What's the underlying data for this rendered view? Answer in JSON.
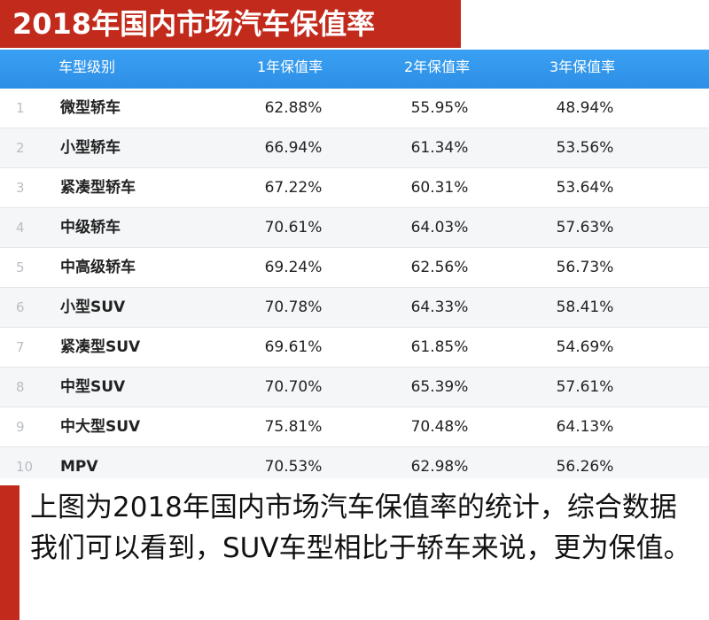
{
  "title": "2018年国内市场汽车保值率",
  "colors": {
    "title_bg": "#c22b1c",
    "header_bg": "#3aa0f2",
    "note_bar": "#c22b1c",
    "row_alt": "#f4f6f8"
  },
  "chart_data": {
    "type": "table",
    "title": "2018年国内市场汽车保值率",
    "columns": [
      "车型级别",
      "1年保值率",
      "2年保值率",
      "3年保值率"
    ],
    "rows": [
      {
        "index": "1",
        "name": "微型轿车",
        "v1": "62.88%",
        "v2": "55.95%",
        "v3": "48.94%"
      },
      {
        "index": "2",
        "name": "小型轿车",
        "v1": "66.94%",
        "v2": "61.34%",
        "v3": "53.56%"
      },
      {
        "index": "3",
        "name": "紧凑型轿车",
        "v1": "67.22%",
        "v2": "60.31%",
        "v3": "53.64%"
      },
      {
        "index": "4",
        "name": "中级轿车",
        "v1": "70.61%",
        "v2": "64.03%",
        "v3": "57.63%"
      },
      {
        "index": "5",
        "name": "中高级轿车",
        "v1": "69.24%",
        "v2": "62.56%",
        "v3": "56.73%"
      },
      {
        "index": "6",
        "name": "小型SUV",
        "v1": "70.78%",
        "v2": "64.33%",
        "v3": "58.41%"
      },
      {
        "index": "7",
        "name": "紧凑型SUV",
        "v1": "69.61%",
        "v2": "61.85%",
        "v3": "54.69%"
      },
      {
        "index": "8",
        "name": "中型SUV",
        "v1": "70.70%",
        "v2": "65.39%",
        "v3": "57.61%"
      },
      {
        "index": "9",
        "name": "中大型SUV",
        "v1": "75.81%",
        "v2": "70.48%",
        "v3": "64.13%"
      },
      {
        "index": "10",
        "name": "MPV",
        "v1": "70.53%",
        "v2": "62.98%",
        "v3": "56.26%"
      }
    ]
  },
  "note": "上图为2018年国内市场汽车保值率的统计，综合数据我们可以看到，SUV车型相比于轿车来说，更为保值。"
}
